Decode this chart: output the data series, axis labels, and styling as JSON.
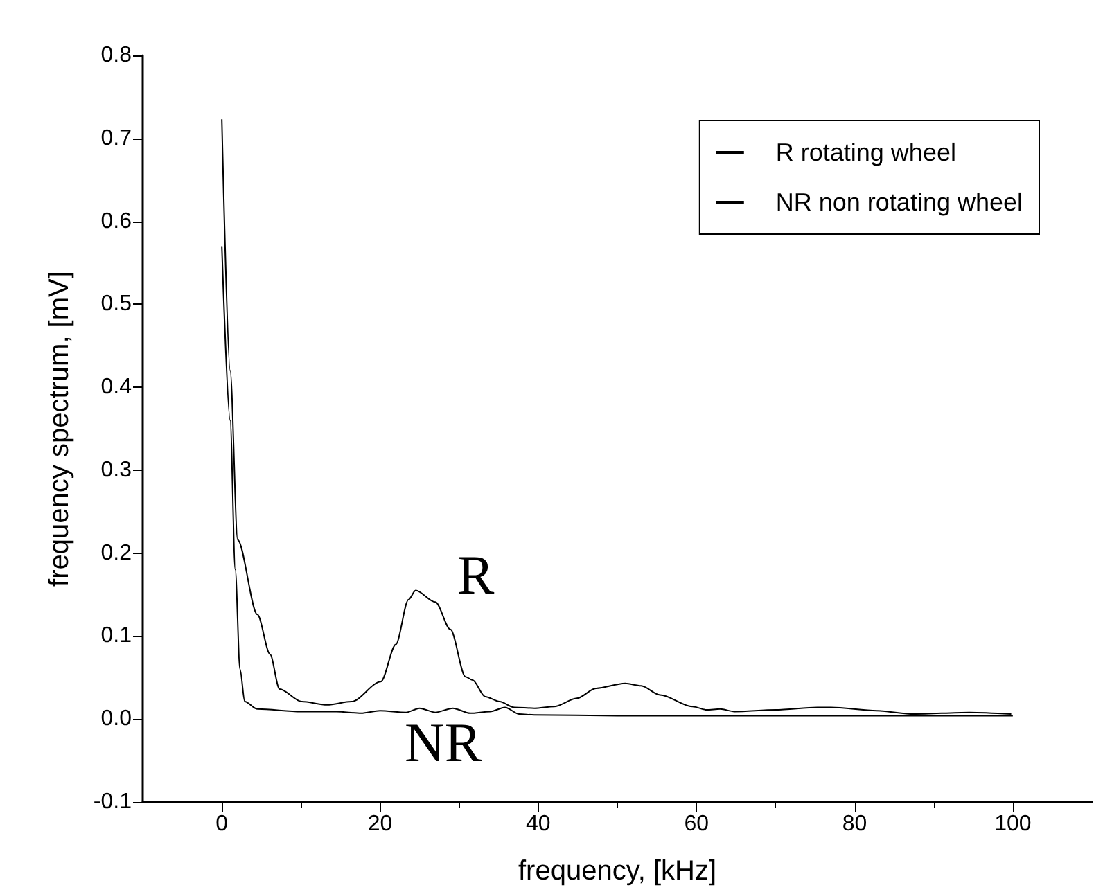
{
  "chart_data": {
    "type": "line",
    "xlabel": "frequency, [kHz]",
    "ylabel": "frequency spectrum, [mV]",
    "xlim": [
      -10,
      110
    ],
    "xticks": [
      0,
      20,
      40,
      60,
      80,
      100
    ],
    "ylim": [
      -0.1,
      0.8
    ],
    "yticks": [
      -0.1,
      {
        "value": 0,
        "label": "0.0"
      },
      0.1,
      0.2,
      0.3,
      0.4,
      0.5,
      0.6,
      0.7,
      0.8
    ],
    "grid": false,
    "legend": "top right",
    "marker": "none",
    "line_style": "solid",
    "series": [
      {
        "name": "R rotating wheel",
        "color": "#000000",
        "x": [
          0,
          1.06,
          2,
          4.5,
          6.1,
          7.3,
          10.1,
          13.3,
          16.4,
          20.1,
          22,
          23.6,
          24.5,
          27,
          28.9,
          30.8,
          31.7,
          33.3,
          35.1,
          37,
          39.5,
          42,
          44.9,
          47.3,
          51,
          53,
          55.4,
          59.5,
          61.3,
          63,
          64.8,
          70,
          75.3,
          77,
          82.8,
          87.5,
          94.5,
          99.8
        ],
        "values": [
          0.723,
          0.42,
          0.216,
          0.126,
          0.078,
          0.036,
          0.021,
          0.017,
          0.021,
          0.045,
          0.09,
          0.144,
          0.155,
          0.141,
          0.108,
          0.051,
          0.047,
          0.027,
          0.021,
          0.014,
          0.013,
          0.015,
          0.025,
          0.037,
          0.043,
          0.04,
          0.029,
          0.015,
          0.011,
          0.012,
          0.009,
          0.011,
          0.014,
          0.014,
          0.01,
          0.006,
          0.008,
          0.006
        ]
      },
      {
        "name": "NR non rotating wheel",
        "color": "#000000",
        "x": [
          0,
          1.06,
          1.7,
          2.3,
          2.9,
          4.5,
          10,
          14.5,
          17.6,
          20,
          23.3,
          25,
          27,
          29.2,
          31.4,
          33.9,
          35.8,
          37.6,
          39.5,
          50,
          60,
          80,
          100
        ],
        "values": [
          0.57,
          0.36,
          0.18,
          0.06,
          0.021,
          0.012,
          0.009,
          0.009,
          0.007,
          0.01,
          0.008,
          0.013,
          0.008,
          0.013,
          0.007,
          0.009,
          0.014,
          0.006,
          0.005,
          0.004,
          0.004,
          0.004,
          0.004
        ]
      }
    ],
    "annotations": [
      "R",
      "NR"
    ]
  }
}
